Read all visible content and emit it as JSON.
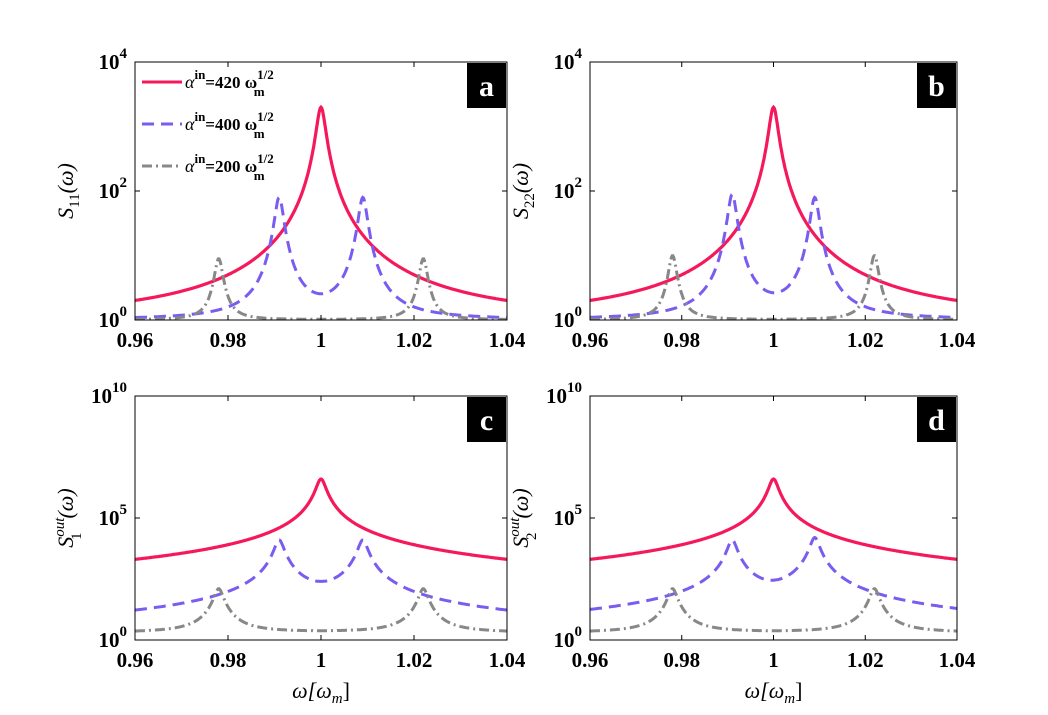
{
  "colors": {
    "series_420": "#f5195b",
    "series_400": "#7b5cf0",
    "series_200": "#888888",
    "letter_bg": "#000000"
  },
  "chart_data": [
    {
      "type": "line",
      "panel_label": "a",
      "ylabel": "S11(ω)",
      "ylabel_main": "S",
      "ylabel_sub": "11",
      "ylabel_sup": "",
      "ylabel_arg": "(ω)",
      "xlabel": "",
      "yscale": "log",
      "xlim": [
        0.96,
        1.04
      ],
      "ylim_exp": [
        0,
        4
      ],
      "xticks": [
        "0.96",
        "0.98",
        "1",
        "1.02",
        "1.04"
      ],
      "yticks": [
        {
          "base": "10",
          "exp": "0",
          "pos": 0
        },
        {
          "base": "10",
          "exp": "2",
          "pos": 2
        },
        {
          "base": "10",
          "exp": "4",
          "pos": 4
        }
      ],
      "legend": [
        {
          "prefix": "α",
          "sup1": "in",
          "mid": "=420 ω",
          "sub2": "m",
          "sup2": "1/2"
        },
        {
          "prefix": "α",
          "sup1": "in",
          "mid": "=400 ω",
          "sub2": "m",
          "sup2": "1/2"
        },
        {
          "prefix": "α",
          "sup1": "in",
          "mid": "=200 ω",
          "sub2": "m",
          "sup2": "1/2"
        }
      ],
      "series": [
        {
          "name": "α^in=420 ω_m^1/2",
          "peaks": [
            {
              "x": 1.0,
              "log10_peak": 3.3
            }
          ],
          "gamma": 0.0009,
          "floor": 0.0,
          "style": "solid"
        },
        {
          "name": "α^in=400 ω_m^1/2",
          "peaks": [
            {
              "x": 0.991,
              "log10_peak": 1.9
            },
            {
              "x": 1.009,
              "log10_peak": 1.9
            }
          ],
          "gamma": 0.0009,
          "floor": 0.0,
          "style": "dashed"
        },
        {
          "name": "α^in=200 ω_m^1/2",
          "peaks": [
            {
              "x": 0.978,
              "log10_peak": 0.95
            },
            {
              "x": 1.022,
              "log10_peak": 0.95
            }
          ],
          "gamma": 0.0009,
          "floor": 0.0,
          "style": "dashdot"
        }
      ]
    },
    {
      "type": "line",
      "panel_label": "b",
      "ylabel": "S22(ω)",
      "ylabel_main": "S",
      "ylabel_sub": "22",
      "ylabel_sup": "",
      "ylabel_arg": "(ω)",
      "xlabel": "",
      "yscale": "log",
      "xlim": [
        0.96,
        1.04
      ],
      "ylim_exp": [
        0,
        4
      ],
      "xticks": [
        "0.96",
        "0.98",
        "1",
        "1.02",
        "1.04"
      ],
      "yticks": [
        {
          "base": "10",
          "exp": "0",
          "pos": 0
        },
        {
          "base": "10",
          "exp": "2",
          "pos": 2
        },
        {
          "base": "10",
          "exp": "4",
          "pos": 4
        }
      ],
      "series": [
        {
          "name": "α^in=420 ω_m^1/2",
          "peaks": [
            {
              "x": 1.0,
              "log10_peak": 3.3
            }
          ],
          "gamma": 0.0009,
          "floor": 0.0,
          "style": "solid"
        },
        {
          "name": "α^in=400 ω_m^1/2",
          "peaks": [
            {
              "x": 0.991,
              "log10_peak": 1.95
            },
            {
              "x": 1.009,
              "log10_peak": 1.9
            }
          ],
          "gamma": 0.0009,
          "floor": 0.0,
          "style": "dashed"
        },
        {
          "name": "α^in=200 ω_m^1/2",
          "peaks": [
            {
              "x": 0.978,
              "log10_peak": 1.0
            },
            {
              "x": 1.022,
              "log10_peak": 1.0
            }
          ],
          "gamma": 0.0009,
          "floor": 0.0,
          "style": "dashdot"
        }
      ]
    },
    {
      "type": "line",
      "panel_label": "c",
      "ylabel": "S1out(ω)",
      "ylabel_main": "S",
      "ylabel_sub": "1",
      "ylabel_sup": "out",
      "ylabel_arg": "(ω)",
      "xlabel": "ω[ωm]",
      "yscale": "log",
      "xlim": [
        0.96,
        1.04
      ],
      "ylim_exp": [
        0,
        10
      ],
      "xticks": [
        "0.96",
        "0.98",
        "1",
        "1.02",
        "1.04"
      ],
      "yticks": [
        {
          "base": "10",
          "exp": "0",
          "pos": 0
        },
        {
          "base": "10",
          "exp": "5",
          "pos": 5
        },
        {
          "base": "10",
          "exp": "10",
          "pos": 10
        }
      ],
      "series": [
        {
          "name": "α^in=420 ω_m^1/2",
          "peaks": [
            {
              "x": 1.0,
              "log10_peak": 6.6
            }
          ],
          "gamma": 0.0009,
          "floor": 0.3,
          "style": "solid"
        },
        {
          "name": "α^in=400 ω_m^1/2",
          "peaks": [
            {
              "x": 0.991,
              "log10_peak": 4.1
            },
            {
              "x": 1.009,
              "log10_peak": 4.1
            }
          ],
          "gamma": 0.0009,
          "floor": 0.3,
          "style": "dashed"
        },
        {
          "name": "α^in=200 ω_m^1/2",
          "peaks": [
            {
              "x": 0.978,
              "log10_peak": 2.1
            },
            {
              "x": 1.022,
              "log10_peak": 2.1
            }
          ],
          "gamma": 0.0009,
          "floor": 0.3,
          "style": "dashdot"
        }
      ]
    },
    {
      "type": "line",
      "panel_label": "d",
      "ylabel": "S2out(ω)",
      "ylabel_main": "S",
      "ylabel_sub": "2",
      "ylabel_sup": "out",
      "ylabel_arg": "(ω)",
      "xlabel": "ω[ωm]",
      "yscale": "log",
      "xlim": [
        0.96,
        1.04
      ],
      "ylim_exp": [
        0,
        10
      ],
      "xticks": [
        "0.96",
        "0.98",
        "1",
        "1.02",
        "1.04"
      ],
      "yticks": [
        {
          "base": "10",
          "exp": "0",
          "pos": 0
        },
        {
          "base": "10",
          "exp": "5",
          "pos": 5
        },
        {
          "base": "10",
          "exp": "10",
          "pos": 10
        }
      ],
      "series": [
        {
          "name": "α^in=420 ω_m^1/2",
          "peaks": [
            {
              "x": 1.0,
              "log10_peak": 6.6
            }
          ],
          "gamma": 0.0009,
          "floor": 0.3,
          "style": "solid"
        },
        {
          "name": "α^in=400 ω_m^1/2",
          "peaks": [
            {
              "x": 0.991,
              "log10_peak": 4.1
            },
            {
              "x": 1.009,
              "log10_peak": 4.2
            }
          ],
          "gamma": 0.0009,
          "floor": 0.3,
          "style": "dashed"
        },
        {
          "name": "α^in=200 ω_m^1/2",
          "peaks": [
            {
              "x": 0.978,
              "log10_peak": 2.1
            },
            {
              "x": 1.022,
              "log10_peak": 2.1
            }
          ],
          "gamma": 0.0009,
          "floor": 0.3,
          "style": "dashdot"
        }
      ]
    }
  ]
}
